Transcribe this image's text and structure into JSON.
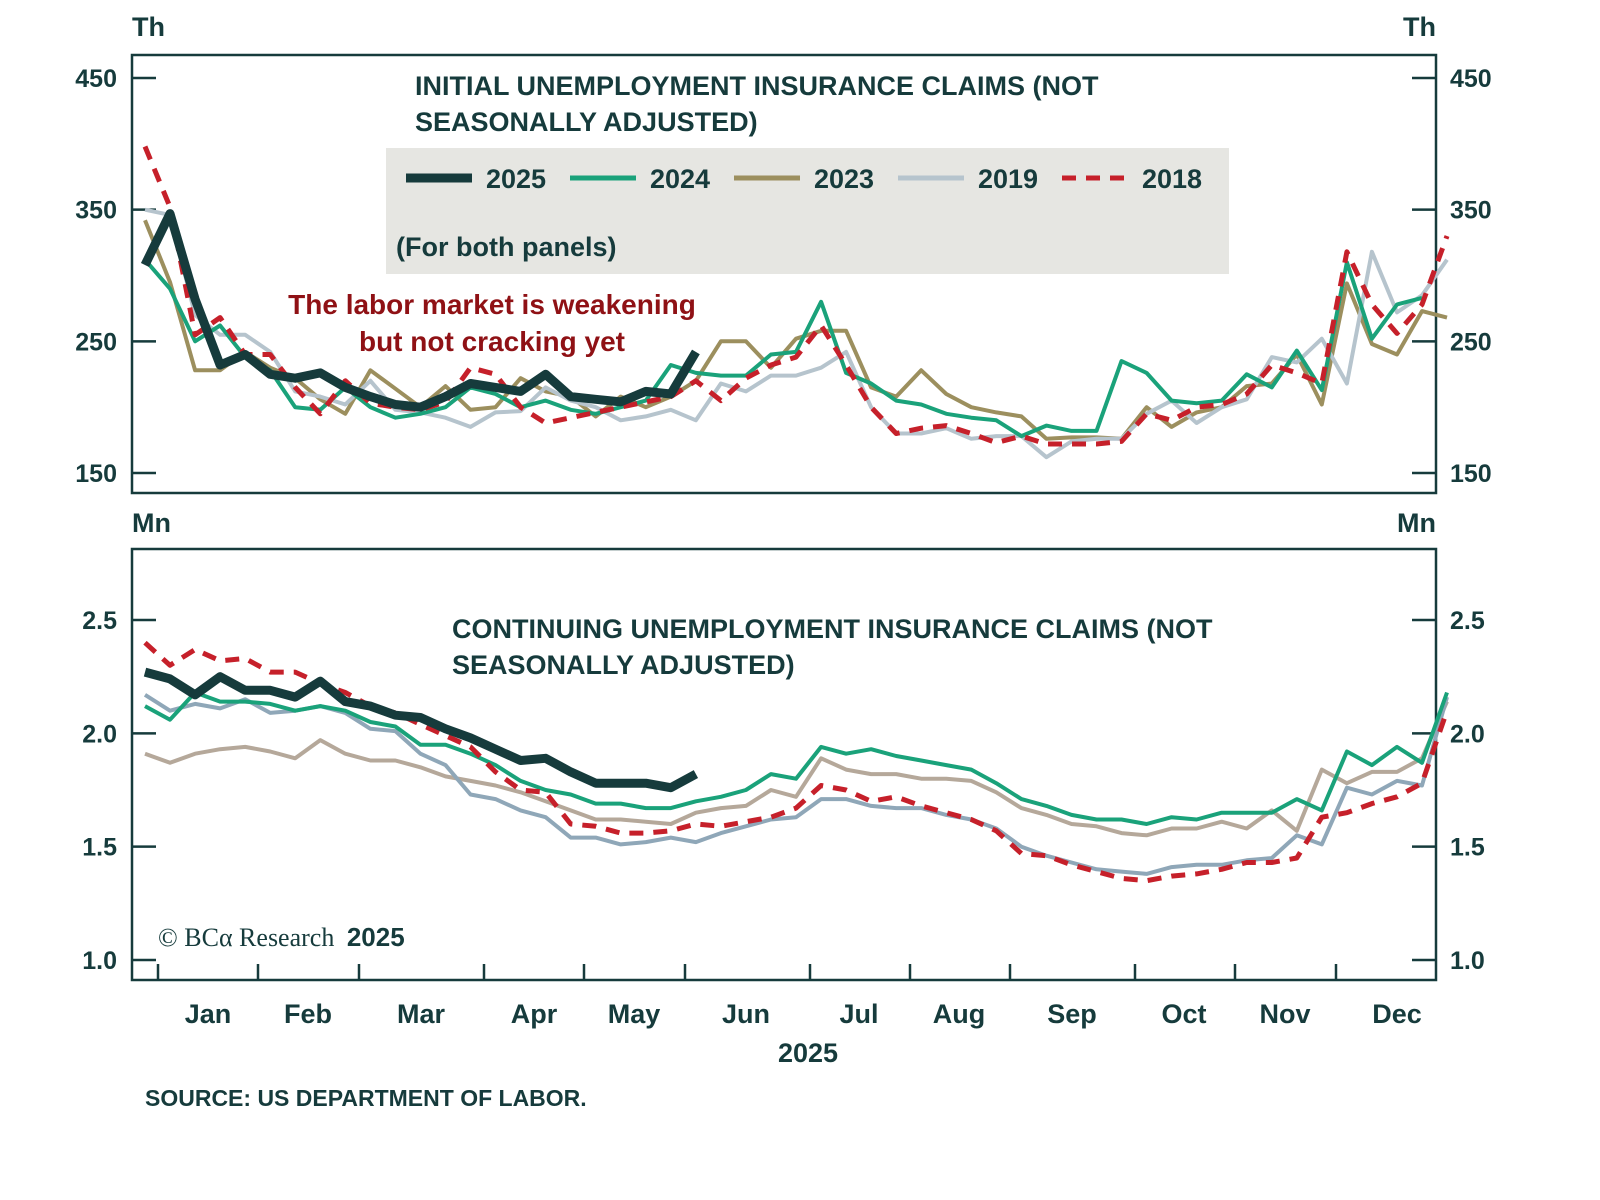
{
  "chart_data": [
    {
      "type": "line",
      "panel": "top",
      "title": "INITIAL UNEMPLOYMENT INSURANCE CLAIMS (NOT SEASONALLY ADJUSTED)",
      "title_lines": [
        "INITIAL UNEMPLOYMENT INSURANCE CLAIMS (NOT",
        "SEASONALLY ADJUSTED)"
      ],
      "unit_left": "Th",
      "unit_right": "Th",
      "ylim": [
        135,
        465
      ],
      "yticks": [
        150,
        250,
        350,
        450
      ],
      "ytick_labels": [
        "150",
        "250",
        "350",
        "450"
      ],
      "x_weeks": 52,
      "annotation": [
        "The labor market is weakening",
        "but not cracking yet"
      ],
      "series": [
        {
          "name": "2025",
          "values": [
            308,
            347,
            282,
            232,
            240,
            225,
            222,
            226,
            215,
            208,
            202,
            200,
            208,
            218,
            215,
            212,
            225,
            208,
            206,
            204,
            212,
            210,
            242
          ]
        },
        {
          "name": "2024",
          "values": [
            312,
            290,
            250,
            262,
            238,
            228,
            200,
            198,
            215,
            200,
            192,
            195,
            200,
            215,
            210,
            200,
            205,
            198,
            195,
            200,
            205,
            232,
            226,
            224,
            224,
            240,
            242,
            280,
            226,
            218,
            205,
            202,
            195,
            192,
            190,
            178,
            186,
            182,
            182,
            235,
            226,
            205,
            203,
            205,
            225,
            215,
            243,
            213,
            310,
            252,
            278,
            283
          ]
        },
        {
          "name": "2023",
          "values": [
            342,
            295,
            228,
            228,
            242,
            230,
            222,
            206,
            195,
            228,
            214,
            200,
            216,
            198,
            200,
            222,
            212,
            208,
            193,
            208,
            200,
            208,
            220,
            250,
            250,
            230,
            252,
            258,
            258,
            215,
            208,
            228,
            210,
            200,
            196,
            193,
            176,
            177,
            177,
            176,
            200,
            185,
            196,
            200,
            216,
            218,
            240,
            202,
            294,
            248,
            240,
            273,
            268
          ]
        },
        {
          "name": "2019",
          "values": [
            350,
            346,
            270,
            255,
            255,
            242,
            212,
            208,
            202,
            220,
            198,
            196,
            192,
            185,
            196,
            197,
            215,
            205,
            200,
            190,
            193,
            198,
            190,
            218,
            212,
            224,
            224,
            230,
            242,
            200,
            180,
            180,
            184,
            176,
            178,
            178,
            162,
            174,
            176,
            176,
            195,
            205,
            188,
            200,
            206,
            238,
            234,
            252,
            218,
            318,
            272,
            285,
            312
          ]
        },
        {
          "name": "2018",
          "values": [
            398,
            352,
            255,
            268,
            240,
            240,
            215,
            195,
            220,
            203,
            200,
            198,
            204,
            230,
            225,
            200,
            188,
            192,
            196,
            200,
            204,
            208,
            220,
            205,
            222,
            232,
            238,
            262,
            232,
            200,
            180,
            184,
            186,
            180,
            173,
            178,
            172,
            172,
            172,
            174,
            195,
            190,
            200,
            202,
            210,
            232,
            226,
            218,
            318,
            278,
            256,
            278,
            330
          ]
        }
      ]
    },
    {
      "type": "line",
      "panel": "bottom",
      "title": "CONTINUING UNEMPLOYMENT INSURANCE CLAIMS (NOT SEASONALLY ADJUSTED)",
      "title_lines": [
        "CONTINUING UNEMPLOYMENT INSURANCE CLAIMS (NOT",
        "SEASONALLY ADJUSTED)"
      ],
      "unit_left": "Mn",
      "unit_right": "Mn",
      "ylim": [
        0.91,
        2.82
      ],
      "yticks": [
        1.0,
        1.5,
        2.0,
        2.5
      ],
      "ytick_labels": [
        "1.0",
        "1.5",
        "2.0",
        "2.5"
      ],
      "x_weeks": 52,
      "series": [
        {
          "name": "2025",
          "values": [
            2.27,
            2.24,
            2.17,
            2.25,
            2.19,
            2.19,
            2.16,
            2.23,
            2.14,
            2.12,
            2.08,
            2.07,
            2.02,
            1.98,
            1.93,
            1.88,
            1.89,
            1.83,
            1.78,
            1.78,
            1.78,
            1.76,
            1.82
          ]
        },
        {
          "name": "2024",
          "values": [
            2.12,
            2.06,
            2.18,
            2.14,
            2.14,
            2.13,
            2.1,
            2.12,
            2.1,
            2.05,
            2.03,
            1.95,
            1.95,
            1.91,
            1.86,
            1.79,
            1.75,
            1.73,
            1.69,
            1.69,
            1.67,
            1.67,
            1.7,
            1.72,
            1.75,
            1.82,
            1.8,
            1.94,
            1.91,
            1.93,
            1.9,
            1.88,
            1.86,
            1.84,
            1.78,
            1.71,
            1.68,
            1.64,
            1.62,
            1.62,
            1.6,
            1.63,
            1.62,
            1.65,
            1.65,
            1.65,
            1.71,
            1.66,
            1.92,
            1.86,
            1.94,
            1.87,
            2.18
          ]
        },
        {
          "name": "2023",
          "values": [
            1.91,
            1.87,
            1.91,
            1.93,
            1.94,
            1.92,
            1.89,
            1.97,
            1.91,
            1.88,
            1.88,
            1.85,
            1.81,
            1.79,
            1.77,
            1.74,
            1.7,
            1.66,
            1.62,
            1.62,
            1.61,
            1.6,
            1.65,
            1.67,
            1.68,
            1.75,
            1.72,
            1.89,
            1.84,
            1.82,
            1.82,
            1.8,
            1.8,
            1.79,
            1.74,
            1.67,
            1.64,
            1.6,
            1.59,
            1.56,
            1.55,
            1.58,
            1.58,
            1.61,
            1.58,
            1.66,
            1.57,
            1.84,
            1.78,
            1.83,
            1.83,
            1.89,
            2.14
          ]
        },
        {
          "name": "2019",
          "values": [
            2.17,
            2.1,
            2.13,
            2.11,
            2.15,
            2.09,
            2.1,
            2.12,
            2.09,
            2.02,
            2.01,
            1.91,
            1.86,
            1.73,
            1.71,
            1.66,
            1.63,
            1.54,
            1.54,
            1.51,
            1.52,
            1.54,
            1.52,
            1.56,
            1.59,
            1.62,
            1.63,
            1.71,
            1.71,
            1.68,
            1.67,
            1.67,
            1.64,
            1.62,
            1.58,
            1.5,
            1.46,
            1.43,
            1.4,
            1.39,
            1.38,
            1.41,
            1.42,
            1.42,
            1.44,
            1.45,
            1.55,
            1.51,
            1.76,
            1.73,
            1.79,
            1.77,
            2.16
          ]
        },
        {
          "name": "2018",
          "values": [
            2.4,
            2.3,
            2.37,
            2.32,
            2.33,
            2.27,
            2.27,
            2.22,
            2.18,
            2.12,
            2.09,
            2.04,
            1.99,
            1.94,
            1.83,
            1.75,
            1.74,
            1.6,
            1.59,
            1.56,
            1.56,
            1.57,
            1.6,
            1.59,
            1.61,
            1.63,
            1.67,
            1.77,
            1.75,
            1.7,
            1.72,
            1.68,
            1.65,
            1.62,
            1.57,
            1.47,
            1.46,
            1.42,
            1.39,
            1.36,
            1.35,
            1.37,
            1.38,
            1.4,
            1.43,
            1.43,
            1.45,
            1.63,
            1.65,
            1.69,
            1.72,
            1.78,
            2.1
          ]
        }
      ]
    }
  ],
  "legend": {
    "items": [
      {
        "label": "2025",
        "color": "#163b3c",
        "style": "thick-solid"
      },
      {
        "label": "2024",
        "color": "#1aa27a",
        "style": "solid"
      },
      {
        "label": "2023",
        "color": "#9c8f5e",
        "style": "solid"
      },
      {
        "label": "2019",
        "color": "#b6c4cd",
        "style": "solid"
      },
      {
        "label": "2018",
        "color": "#c6202a",
        "style": "dashed"
      }
    ],
    "note": "(For both panels)"
  },
  "bottom_panel_colors": {
    "2023": "#b5a89a",
    "2019": "#8fa7b8"
  },
  "x_axis": {
    "months": [
      "Jan",
      "Feb",
      "Mar",
      "Apr",
      "May",
      "Jun",
      "Jul",
      "Aug",
      "Sep",
      "Oct",
      "Nov",
      "Dec"
    ],
    "year_label": "2025"
  },
  "copyright": {
    "prefix": "© BCα Research",
    "year": "2025"
  },
  "source": "SOURCE: US DEPARTMENT OF LABOR.",
  "colors": {
    "axis": "#163b3c",
    "legend_bg": "#e6e6e2",
    "annotation": "#8f1115"
  }
}
